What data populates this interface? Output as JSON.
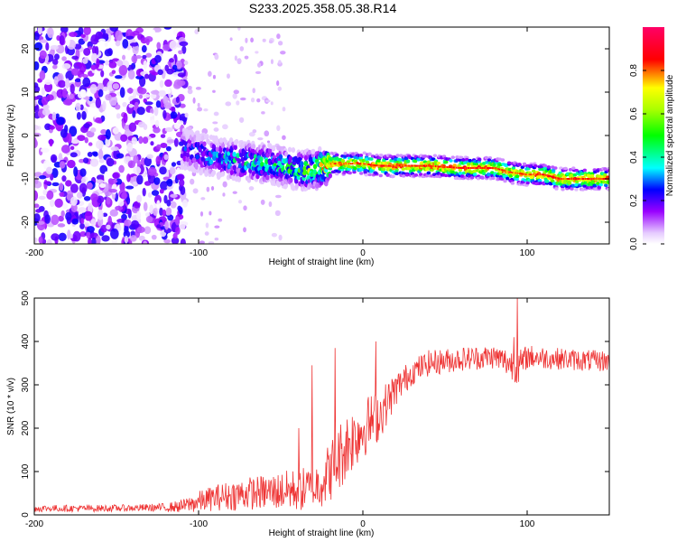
{
  "title": "S233.2025.358.05.38.R14",
  "chart_data": [
    {
      "type": "heatmap",
      "xlabel": "Height of straight line (km)",
      "ylabel": "Frequency (Hz)",
      "xlim": [
        -200,
        150
      ],
      "ylim": [
        -25,
        25
      ],
      "xticks": [
        -200,
        -100,
        0,
        100
      ],
      "xtick_labels": [
        "-200",
        "-100",
        "0",
        "100"
      ],
      "yticks": [
        -20,
        -10,
        0,
        10,
        20
      ],
      "ytick_labels": [
        "-20",
        "-10",
        "0",
        "10",
        "20"
      ],
      "colorbar": {
        "label": "Normalized spectral amplitude",
        "range": [
          0,
          1
        ],
        "ticks": [
          0.0,
          0.2,
          0.4,
          0.6,
          0.8
        ],
        "tick_labels": [
          "0.0",
          "0.2",
          "0.4",
          "0.6",
          "0.8"
        ],
        "colormap": [
          "#ffffff",
          "#e6ccff",
          "#9900ff",
          "#0000ff",
          "#00ffff",
          "#00ff00",
          "#ffff00",
          "#ff0000",
          "#ff0066"
        ]
      },
      "ridge": {
        "description": "signal trace frequency vs height",
        "x": [
          -110,
          -100,
          -90,
          -80,
          -70,
          -60,
          -50,
          -40,
          -30,
          -20,
          -10,
          0,
          10,
          20,
          40,
          60,
          80,
          90,
          100,
          110,
          120,
          130,
          140,
          150
        ],
        "y": [
          -3,
          -4,
          -5,
          -5.5,
          -6,
          -6.5,
          -7,
          -8,
          -8,
          -6.5,
          -6.5,
          -6.5,
          -7,
          -7,
          -7,
          -7.5,
          -7.5,
          -8.5,
          -9,
          -9,
          -10,
          -10,
          -10,
          -10
        ],
        "peak_amplitude": [
          0.25,
          0.3,
          0.35,
          0.4,
          0.45,
          0.45,
          0.45,
          0.5,
          0.6,
          0.85,
          0.85,
          0.85,
          0.9,
          0.9,
          0.9,
          0.9,
          0.9,
          0.85,
          0.85,
          0.9,
          0.9,
          0.9,
          0.9,
          0.9
        ]
      },
      "noise_region": {
        "x_range": [
          -200,
          -108
        ],
        "amplitude": 0.25
      }
    },
    {
      "type": "line",
      "xlabel": "Height of straight line (km)",
      "ylabel": "SNR (10 * v/v)",
      "xlim": [
        -200,
        150
      ],
      "ylim": [
        0,
        500
      ],
      "xticks": [
        -200,
        -100,
        0,
        100
      ],
      "xtick_labels": [
        "-200",
        "-100",
        "0",
        "100"
      ],
      "yticks": [
        0,
        100,
        200,
        300,
        400,
        500
      ],
      "ytick_labels": [
        "0",
        "100",
        "200",
        "300",
        "400",
        "500"
      ],
      "series": [
        {
          "name": "SNR",
          "color": "#ee3333",
          "x": [
            -200,
            -180,
            -160,
            -140,
            -120,
            -110,
            -100,
            -90,
            -80,
            -70,
            -60,
            -50,
            -40,
            -30,
            -20,
            -15,
            -10,
            0,
            10,
            20,
            30,
            40,
            60,
            80,
            95,
            100,
            120,
            140,
            150
          ],
          "y": [
            15,
            15,
            15,
            16,
            17,
            20,
            30,
            40,
            45,
            50,
            52,
            55,
            58,
            60,
            100,
            130,
            160,
            200,
            230,
            290,
            330,
            350,
            360,
            365,
            340,
            365,
            360,
            355,
            355
          ],
          "noise_amplitude": [
            8,
            8,
            8,
            8,
            10,
            15,
            25,
            30,
            35,
            38,
            40,
            45,
            50,
            55,
            70,
            80,
            80,
            70,
            60,
            40,
            30,
            30,
            28,
            28,
            40,
            28,
            25,
            25,
            25
          ]
        }
      ],
      "spikes": [
        {
          "x": -39,
          "y": 200
        },
        {
          "x": -31,
          "y": 345
        },
        {
          "x": -17,
          "y": 385
        },
        {
          "x": 8,
          "y": 400
        },
        {
          "x": 94,
          "y": 500
        },
        {
          "x": 92,
          "y": 410
        }
      ]
    }
  ]
}
